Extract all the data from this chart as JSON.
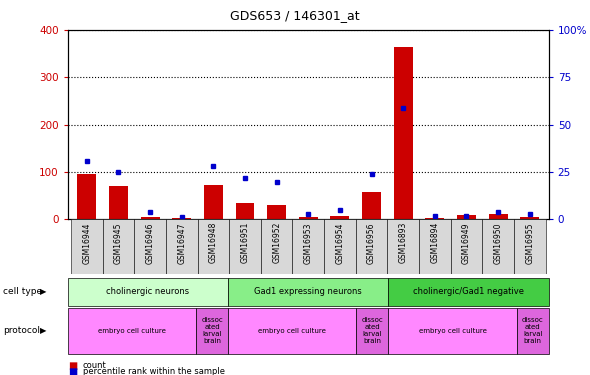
{
  "title": "GDS653 / 146301_at",
  "samples": [
    "GSM16944",
    "GSM16945",
    "GSM16946",
    "GSM16947",
    "GSM16948",
    "GSM16951",
    "GSM16952",
    "GSM16953",
    "GSM16954",
    "GSM16956",
    "GSM16893",
    "GSM16894",
    "GSM16949",
    "GSM16950",
    "GSM16955"
  ],
  "count": [
    95,
    70,
    5,
    3,
    72,
    35,
    30,
    5,
    8,
    58,
    365,
    3,
    10,
    12,
    5
  ],
  "percentile": [
    31,
    25,
    4,
    1,
    28,
    22,
    20,
    3,
    5,
    24,
    59,
    2,
    2,
    4,
    3
  ],
  "ylim_left": [
    0,
    400
  ],
  "ylim_right": [
    0,
    100
  ],
  "yticks_left": [
    0,
    100,
    200,
    300,
    400
  ],
  "yticks_right": [
    0,
    25,
    50,
    75,
    100
  ],
  "ytick_right_labels": [
    "0",
    "25",
    "50",
    "75",
    "100%"
  ],
  "bar_color": "#cc0000",
  "dot_color": "#0000cc",
  "cell_type_groups": [
    {
      "label": "cholinergic neurons",
      "start": 0,
      "end": 5,
      "color": "#ccffcc"
    },
    {
      "label": "Gad1 expressing neurons",
      "start": 5,
      "end": 10,
      "color": "#88ee88"
    },
    {
      "label": "cholinergic/Gad1 negative",
      "start": 10,
      "end": 15,
      "color": "#44cc44"
    }
  ],
  "protocol_groups": [
    {
      "label": "embryo cell culture",
      "start": 0,
      "end": 4,
      "color": "#ff88ff"
    },
    {
      "label": "dissoc\nated\nlarval\nbrain",
      "start": 4,
      "end": 5,
      "color": "#dd66dd"
    },
    {
      "label": "embryo cell culture",
      "start": 5,
      "end": 9,
      "color": "#ff88ff"
    },
    {
      "label": "dissoc\nated\nlarval\nbrain",
      "start": 9,
      "end": 10,
      "color": "#dd66dd"
    },
    {
      "label": "embryo cell culture",
      "start": 10,
      "end": 14,
      "color": "#ff88ff"
    },
    {
      "label": "dissoc\nated\nlarval\nbrain",
      "start": 14,
      "end": 15,
      "color": "#dd66dd"
    }
  ],
  "bg_color": "#ffffff",
  "plot_bg": "#ffffff"
}
